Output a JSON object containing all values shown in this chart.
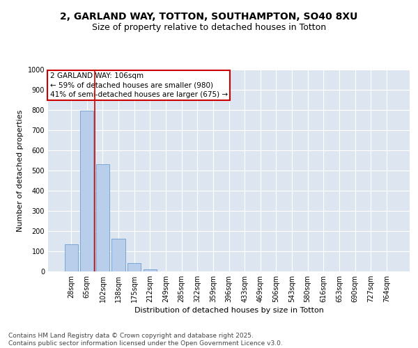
{
  "title_line1": "2, GARLAND WAY, TOTTON, SOUTHAMPTON, SO40 8XU",
  "title_line2": "Size of property relative to detached houses in Totton",
  "xlabel": "Distribution of detached houses by size in Totton",
  "ylabel": "Number of detached properties",
  "categories": [
    "28sqm",
    "65sqm",
    "102sqm",
    "138sqm",
    "175sqm",
    "212sqm",
    "249sqm",
    "285sqm",
    "322sqm",
    "359sqm",
    "396sqm",
    "433sqm",
    "469sqm",
    "506sqm",
    "543sqm",
    "580sqm",
    "616sqm",
    "653sqm",
    "690sqm",
    "727sqm",
    "764sqm"
  ],
  "values": [
    135,
    797,
    530,
    163,
    40,
    12,
    0,
    0,
    0,
    0,
    0,
    0,
    0,
    0,
    0,
    0,
    0,
    0,
    0,
    0,
    0
  ],
  "bar_color": "#b8ceea",
  "bar_edge_color": "#6a9fd0",
  "background_color": "#dde5f0",
  "grid_color": "#ffffff",
  "annotation_box_color": "#cc0000",
  "annotation_text": "2 GARLAND WAY: 106sqm\n← 59% of detached houses are smaller (980)\n41% of semi-detached houses are larger (675) →",
  "vline_x": 1.5,
  "vline_color": "#cc0000",
  "ylim": [
    0,
    1000
  ],
  "yticks": [
    0,
    100,
    200,
    300,
    400,
    500,
    600,
    700,
    800,
    900,
    1000
  ],
  "footnote": "Contains HM Land Registry data © Crown copyright and database right 2025.\nContains public sector information licensed under the Open Government Licence v3.0.",
  "title_fontsize": 10,
  "subtitle_fontsize": 9,
  "axis_label_fontsize": 8,
  "tick_fontsize": 7,
  "annotation_fontsize": 7.5,
  "footnote_fontsize": 6.5
}
